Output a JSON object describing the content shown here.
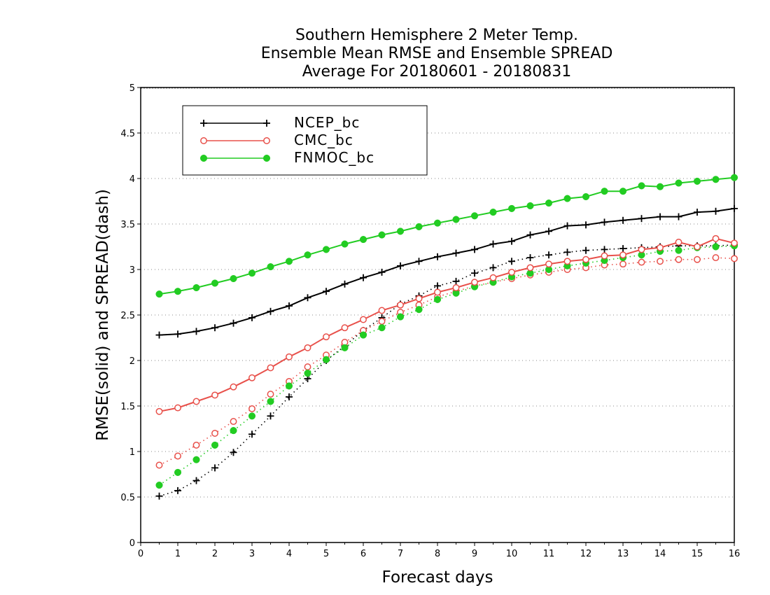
{
  "chart_data": {
    "type": "line",
    "title": [
      "Southern Hemisphere 2 Meter Temp.",
      "Ensemble Mean RMSE and Ensemble SPREAD",
      "Average For 20180601 - 20180831"
    ],
    "xlabel": "Forecast days",
    "ylabel": "RMSE(solid) and SPREAD(dash)",
    "xlim": [
      0,
      16
    ],
    "ylim": [
      0,
      5
    ],
    "xticks": [
      "0",
      "1",
      "2",
      "3",
      "4",
      "5",
      "6",
      "7",
      "8",
      "9",
      "10",
      "11",
      "12",
      "13",
      "14",
      "15",
      "16"
    ],
    "yticks": [
      "0",
      "0.5",
      "1",
      "1.5",
      "2",
      "2.5",
      "3",
      "3.5",
      "4",
      "4.5",
      "5"
    ],
    "grid": "horizontal dotted",
    "legend_position": "top-left",
    "x": [
      0.5,
      1,
      1.5,
      2,
      2.5,
      3,
      3.5,
      4,
      4.5,
      5,
      5.5,
      6,
      6.5,
      7,
      7.5,
      8,
      8.5,
      9,
      9.5,
      10,
      10.5,
      11,
      11.5,
      12,
      12.5,
      13,
      13.5,
      14,
      14.5,
      15,
      15.5,
      16
    ],
    "series": [
      {
        "name": "NCEP_bc",
        "color": "#000000",
        "marker": "plus",
        "rmse": [
          2.28,
          2.29,
          2.32,
          2.36,
          2.41,
          2.47,
          2.54,
          2.6,
          2.69,
          2.76,
          2.84,
          2.91,
          2.97,
          3.04,
          3.09,
          3.14,
          3.18,
          3.22,
          3.28,
          3.31,
          3.38,
          3.42,
          3.48,
          3.49,
          3.52,
          3.54,
          3.56,
          3.58,
          3.58,
          3.63,
          3.64,
          3.67
        ],
        "spread": [
          0.51,
          0.57,
          0.68,
          0.82,
          0.99,
          1.19,
          1.39,
          1.6,
          1.8,
          2.0,
          2.16,
          2.33,
          2.47,
          2.62,
          2.71,
          2.82,
          2.87,
          2.96,
          3.02,
          3.09,
          3.13,
          3.16,
          3.19,
          3.21,
          3.22,
          3.23,
          3.24,
          3.25,
          3.26,
          3.26,
          3.26,
          3.27
        ]
      },
      {
        "name": "CMC_bc",
        "color": "#e8504a",
        "marker": "open-circle",
        "rmse": [
          1.44,
          1.48,
          1.55,
          1.62,
          1.71,
          1.81,
          1.92,
          2.04,
          2.14,
          2.26,
          2.36,
          2.45,
          2.55,
          2.61,
          2.68,
          2.75,
          2.8,
          2.86,
          2.91,
          2.97,
          3.02,
          3.06,
          3.09,
          3.11,
          3.15,
          3.16,
          3.22,
          3.24,
          3.3,
          3.25,
          3.34,
          3.29
        ],
        "spread": [
          0.85,
          0.95,
          1.07,
          1.2,
          1.33,
          1.47,
          1.63,
          1.77,
          1.93,
          2.06,
          2.2,
          2.33,
          2.43,
          2.53,
          2.61,
          2.7,
          2.76,
          2.82,
          2.86,
          2.9,
          2.94,
          2.97,
          3.0,
          3.02,
          3.05,
          3.06,
          3.08,
          3.09,
          3.11,
          3.11,
          3.13,
          3.12
        ]
      },
      {
        "name": "FNMOC_bc",
        "color": "#22cc22",
        "marker": "filled-circle",
        "rmse": [
          2.73,
          2.76,
          2.8,
          2.85,
          2.9,
          2.96,
          3.03,
          3.09,
          3.16,
          3.22,
          3.28,
          3.33,
          3.38,
          3.42,
          3.47,
          3.51,
          3.55,
          3.59,
          3.63,
          3.67,
          3.7,
          3.73,
          3.78,
          3.8,
          3.86,
          3.86,
          3.92,
          3.91,
          3.95,
          3.97,
          3.99,
          4.01
        ],
        "spread": [
          0.63,
          0.77,
          0.91,
          1.07,
          1.23,
          1.39,
          1.55,
          1.72,
          1.86,
          2.01,
          2.14,
          2.28,
          2.36,
          2.48,
          2.56,
          2.67,
          2.74,
          2.81,
          2.86,
          2.92,
          2.96,
          3.0,
          3.04,
          3.07,
          3.1,
          3.13,
          3.16,
          3.2,
          3.21,
          3.24,
          3.25,
          3.26
        ]
      }
    ]
  }
}
